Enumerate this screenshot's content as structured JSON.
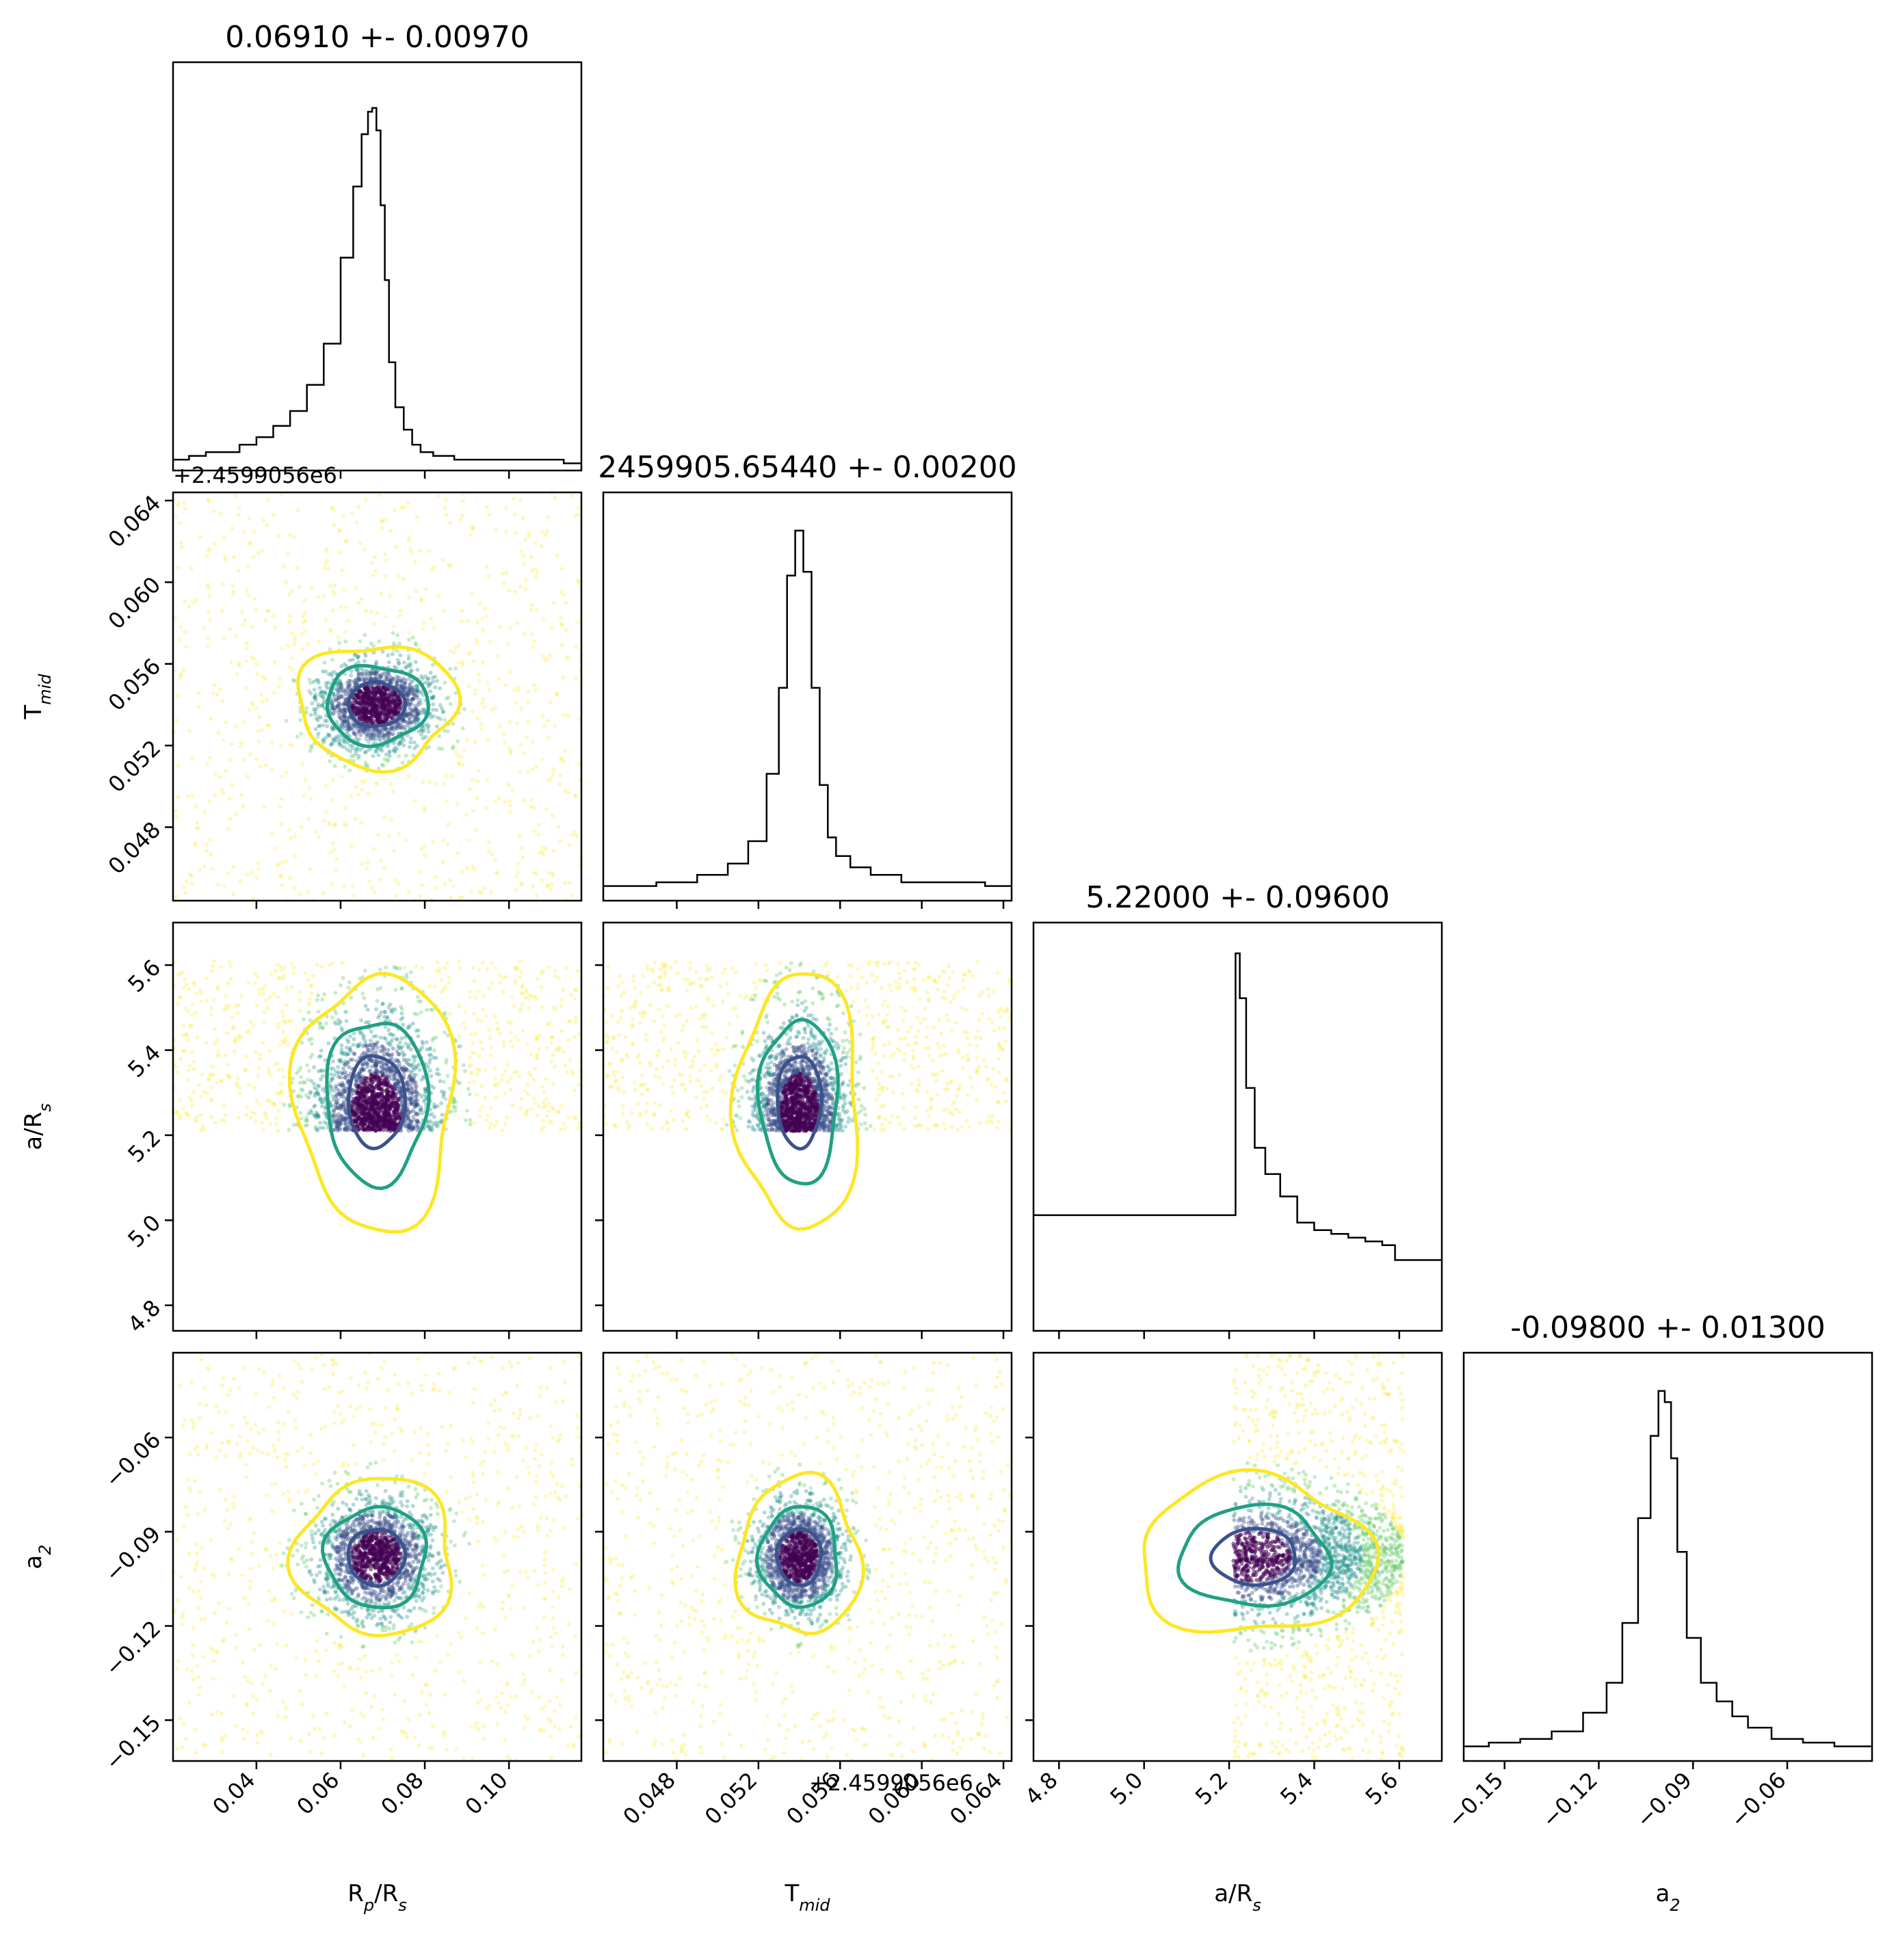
{
  "chart_data": {
    "type": "scatter",
    "title": "",
    "parameters": [
      {
        "key": "rprs",
        "label_main": "R",
        "label_sub": "p",
        "label_tail": "/R",
        "label_tail_sub": "s"
      },
      {
        "key": "tmid",
        "label_main": "T",
        "label_sub": "mid",
        "label_tail": "",
        "label_tail_sub": ""
      },
      {
        "key": "ars",
        "label_main": "a/R",
        "label_sub": "s",
        "label_tail": "",
        "label_tail_sub": ""
      },
      {
        "key": "a2",
        "label_main": "a",
        "label_sub": "2",
        "label_tail": "",
        "label_tail_sub": ""
      }
    ],
    "titles": [
      "0.06910 +- 0.00970",
      "2459905.65440 +- 0.00200",
      "5.22000 +- 0.09600",
      "-0.09800 +- 0.01300"
    ],
    "offset_text": "+2.4599056e6",
    "ranges": [
      [
        0.0202,
        0.1172
      ],
      [
        0.0444,
        0.0644
      ],
      [
        4.74,
        5.7
      ],
      [
        -0.163,
        -0.033
      ]
    ],
    "ticks": [
      [
        "0.04",
        "0.06",
        "0.08",
        "0.10"
      ],
      [
        "0.048",
        "0.052",
        "0.056",
        "0.060",
        "0.064"
      ],
      [
        "4.8",
        "5.0",
        "5.2",
        "5.4",
        "5.6"
      ],
      [
        "−0.15",
        "−0.12",
        "−0.09",
        "−0.06"
      ]
    ],
    "tick_values": [
      [
        0.04,
        0.06,
        0.08,
        0.1
      ],
      [
        0.048,
        0.052,
        0.056,
        0.06,
        0.064
      ],
      [
        4.8,
        5.0,
        5.2,
        5.4,
        5.6
      ],
      [
        -0.15,
        -0.12,
        -0.09,
        -0.06
      ]
    ],
    "histograms": [
      {
        "param": "rprs",
        "x": [
          0.022,
          0.026,
          0.03,
          0.034,
          0.038,
          0.042,
          0.046,
          0.05,
          0.054,
          0.058,
          0.062,
          0.064,
          0.066,
          0.067,
          0.068,
          0.069,
          0.07,
          0.071,
          0.072,
          0.074,
          0.076,
          0.078,
          0.08,
          0.084,
          0.09,
          0.1,
          0.11,
          0.116
        ],
        "density": [
          0.02,
          0.03,
          0.04,
          0.04,
          0.06,
          0.08,
          0.11,
          0.15,
          0.22,
          0.33,
          0.56,
          0.75,
          0.89,
          0.95,
          0.96,
          0.9,
          0.7,
          0.5,
          0.28,
          0.16,
          0.1,
          0.06,
          0.04,
          0.03,
          0.02,
          0.02,
          0.02,
          0.01
        ]
      },
      {
        "param": "tmid",
        "x": [
          0.0446,
          0.046,
          0.048,
          0.05,
          0.051,
          0.052,
          0.0528,
          0.0532,
          0.0536,
          0.054,
          0.0544,
          0.0548,
          0.0552,
          0.0556,
          0.056,
          0.057,
          0.058,
          0.06,
          0.062,
          0.0642
        ],
        "density": [
          0.03,
          0.03,
          0.04,
          0.06,
          0.09,
          0.15,
          0.33,
          0.56,
          0.86,
          0.98,
          0.87,
          0.56,
          0.3,
          0.16,
          0.11,
          0.08,
          0.06,
          0.04,
          0.04,
          0.03
        ]
      },
      {
        "param": "ars",
        "x": [
          5.21,
          5.22,
          5.23,
          5.25,
          5.27,
          5.3,
          5.34,
          5.38,
          5.42,
          5.46,
          5.5,
          5.54,
          5.58,
          5.6
        ],
        "density": [
          0.3,
          1.0,
          0.88,
          0.64,
          0.48,
          0.41,
          0.35,
          0.28,
          0.26,
          0.25,
          0.24,
          0.23,
          0.22,
          0.18
        ]
      },
      {
        "param": "a2",
        "x": [
          -0.16,
          -0.15,
          -0.14,
          -0.13,
          -0.12,
          -0.115,
          -0.11,
          -0.105,
          -0.102,
          -0.1,
          -0.098,
          -0.096,
          -0.094,
          -0.09,
          -0.085,
          -0.08,
          -0.075,
          -0.07,
          -0.06,
          -0.05,
          -0.04,
          -0.035
        ],
        "density": [
          0.03,
          0.04,
          0.05,
          0.07,
          0.12,
          0.2,
          0.36,
          0.64,
          0.86,
          0.98,
          0.95,
          0.8,
          0.55,
          0.32,
          0.2,
          0.15,
          0.11,
          0.08,
          0.05,
          0.04,
          0.03,
          0.03
        ]
      }
    ],
    "scatter_color_scale": [
      "#440154",
      "#3b528b",
      "#21918c",
      "#5ec962",
      "#fde725"
    ],
    "contour_colors": [
      "#3b528b",
      "#21a083",
      "#fde725"
    ],
    "grid": false,
    "legend": "none",
    "xlabel": "",
    "ylabel": ""
  }
}
